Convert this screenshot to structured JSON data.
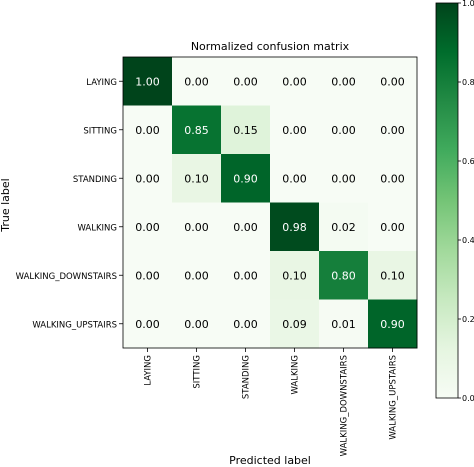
{
  "chart_data": {
    "type": "heatmap",
    "title": "Normalized confusion matrix",
    "xlabel": "Predicted label",
    "ylabel": "True label",
    "x_categories": [
      "LAYING",
      "SITTING",
      "STANDING",
      "WALKING",
      "WALKING_DOWNSTAIRS",
      "WALKING_UPSTAIRS"
    ],
    "y_categories": [
      "LAYING",
      "SITTING",
      "STANDING",
      "WALKING",
      "WALKING_DOWNSTAIRS",
      "WALKING_UPSTAIRS"
    ],
    "values": [
      [
        1.0,
        0.0,
        0.0,
        0.0,
        0.0,
        0.0
      ],
      [
        0.0,
        0.85,
        0.15,
        0.0,
        0.0,
        0.0
      ],
      [
        0.0,
        0.1,
        0.9,
        0.0,
        0.0,
        0.0
      ],
      [
        0.0,
        0.0,
        0.0,
        0.98,
        0.02,
        0.0
      ],
      [
        0.0,
        0.0,
        0.0,
        0.1,
        0.8,
        0.1
      ],
      [
        0.0,
        0.0,
        0.0,
        0.09,
        0.01,
        0.9
      ]
    ],
    "value_labels": [
      [
        "1.00",
        "0.00",
        "0.00",
        "0.00",
        "0.00",
        "0.00"
      ],
      [
        "0.00",
        "0.85",
        "0.15",
        "0.00",
        "0.00",
        "0.00"
      ],
      [
        "0.00",
        "0.10",
        "0.90",
        "0.00",
        "0.00",
        "0.00"
      ],
      [
        "0.00",
        "0.00",
        "0.00",
        "0.98",
        "0.02",
        "0.00"
      ],
      [
        "0.00",
        "0.00",
        "0.00",
        "0.10",
        "0.80",
        "0.10"
      ],
      [
        "0.00",
        "0.00",
        "0.00",
        "0.09",
        "0.01",
        "0.90"
      ]
    ],
    "colormap": "Greens",
    "colorbar": {
      "range": [
        0,
        1
      ],
      "ticks": [
        0.0,
        0.2,
        0.4,
        0.6,
        0.8,
        1.0
      ],
      "tick_labels": [
        "0.0",
        "0.2",
        "0.4",
        "0.6",
        "0.8",
        "1.0"
      ]
    },
    "grid": false
  }
}
